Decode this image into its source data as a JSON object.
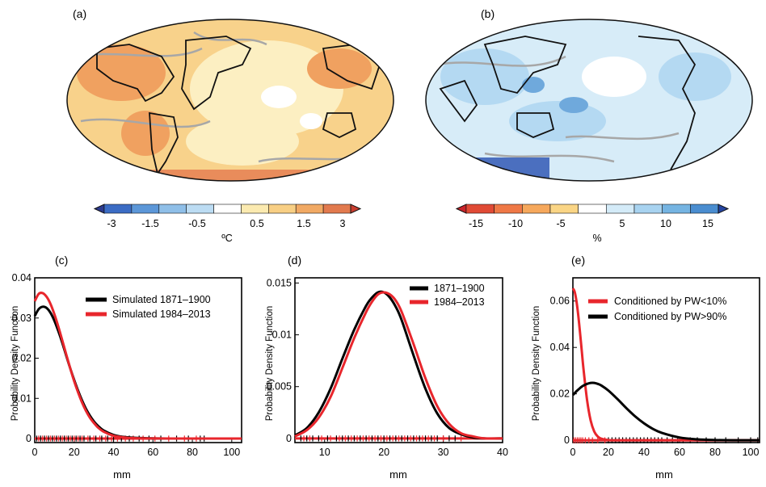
{
  "maps": [
    {
      "label": "(a)",
      "colorbar": {
        "tick_labels": [
          "-3",
          "-1.5",
          "-0.5",
          "0.5",
          "1.5",
          "3"
        ],
        "unit": "ºC",
        "colors": [
          "#2c3a8f",
          "#3b6cc4",
          "#5c97d8",
          "#8fbfe8",
          "#bcdcf3",
          "#ffffff",
          "#fbeab0",
          "#f8cf84",
          "#f1a964",
          "#e27a4e",
          "#c93d2f"
        ]
      },
      "colors": {
        "ocean": "#f8d28b",
        "warm": "#f0a160",
        "light": "#fcefc2",
        "white": "#ffffff"
      }
    },
    {
      "label": "(b)",
      "colorbar": {
        "tick_labels": [
          "-15",
          "-10",
          "-5",
          "5",
          "10",
          "15"
        ],
        "unit": "%",
        "colors": [
          "#c9232a",
          "#e04a35",
          "#ef7846",
          "#f6a85c",
          "#fad585",
          "#ffffff",
          "#d4ebf8",
          "#a8d3f0",
          "#75b4e2",
          "#4a8dd0",
          "#2545a0"
        ]
      },
      "colors": {
        "ocean": "#d7ecf8",
        "mid": "#b4d9f2",
        "dark": "#6fa9dc",
        "white": "#ffffff"
      }
    }
  ],
  "chart_data": [
    {
      "type": "line",
      "label": "(c)",
      "xlabel": "mm",
      "ylabel": "Probability Density Function",
      "xlim": [
        0,
        105
      ],
      "ylim": [
        -0.001,
        0.04
      ],
      "xticks": [
        "0",
        "20",
        "40",
        "60",
        "80",
        "100"
      ],
      "yticks": [
        "0",
        "0.01",
        "0.02",
        "0.03",
        "0.04"
      ],
      "x": [
        0,
        2,
        4,
        6,
        8,
        10,
        12,
        14,
        16,
        18,
        20,
        22,
        24,
        26,
        28,
        30,
        32,
        35,
        40,
        45,
        50,
        60,
        70,
        80,
        90,
        100,
        105
      ],
      "series": [
        {
          "name": "Simulated 1871–1900",
          "color": "#000000",
          "values": [
            0.0305,
            0.0322,
            0.0328,
            0.0325,
            0.0313,
            0.0293,
            0.0267,
            0.0238,
            0.0206,
            0.0175,
            0.0146,
            0.0119,
            0.0095,
            0.0074,
            0.0057,
            0.0043,
            0.0032,
            0.002,
            0.0009,
            0.0004,
            0.0002,
            5e-05,
            0.0,
            0.0,
            0.0,
            0.0,
            0.0
          ]
        },
        {
          "name": "Simulated 1984–2013",
          "color": "#e8262c",
          "values": [
            0.0342,
            0.036,
            0.0362,
            0.0353,
            0.0335,
            0.0309,
            0.0278,
            0.0244,
            0.0209,
            0.0175,
            0.0143,
            0.0115,
            0.009,
            0.0069,
            0.0052,
            0.0039,
            0.0028,
            0.0017,
            0.0007,
            0.0003,
            0.0001,
            3e-05,
            0.0,
            0.0,
            0.0,
            0.0,
            0.0
          ]
        }
      ],
      "rug": {
        "black": [
          1,
          3,
          5,
          7,
          9,
          11,
          13,
          15,
          17,
          19,
          21,
          23,
          25,
          28,
          31,
          34,
          37,
          40,
          44,
          48,
          53,
          58,
          64,
          72,
          78,
          84,
          86
        ],
        "red": [
          2,
          4,
          6,
          8,
          10,
          12,
          14,
          16,
          18,
          20,
          22,
          24,
          27,
          30,
          33,
          36,
          39,
          42,
          46,
          50,
          55,
          61,
          68,
          76,
          82
        ]
      },
      "legend": "top-right"
    },
    {
      "type": "line",
      "label": "(d)",
      "xlabel": "mm",
      "ylabel": "Probability Density Function",
      "xlim": [
        5,
        40
      ],
      "ylim": [
        -0.0004,
        0.0155
      ],
      "xticks": [
        "10",
        "20",
        "30",
        "40"
      ],
      "yticks": [
        "0",
        "0.005",
        "0.01",
        "0.015"
      ],
      "x": [
        5,
        7,
        9,
        11,
        13,
        15,
        17,
        18,
        19,
        20,
        21,
        22,
        23,
        25,
        27,
        29,
        31,
        33,
        35,
        37,
        40
      ],
      "series": [
        {
          "name": "1871–1900",
          "color": "#000000",
          "values": [
            0.0003,
            0.001,
            0.0025,
            0.0048,
            0.0077,
            0.0105,
            0.0128,
            0.0136,
            0.0141,
            0.0141,
            0.0136,
            0.0127,
            0.0114,
            0.008,
            0.0048,
            0.0024,
            0.001,
            0.0004,
            0.0001,
            0.0,
            0.0
          ]
        },
        {
          "name": "1984–2013",
          "color": "#e8262c",
          "values": [
            0.0002,
            0.0008,
            0.002,
            0.004,
            0.0068,
            0.0097,
            0.0122,
            0.0132,
            0.0139,
            0.0141,
            0.0139,
            0.0133,
            0.0122,
            0.0091,
            0.0058,
            0.0031,
            0.0014,
            0.0005,
            0.0002,
            0.0,
            0.0
          ]
        }
      ],
      "rug": {
        "black": [
          6,
          7,
          8,
          9,
          10.5,
          12,
          13,
          14,
          15,
          16,
          17,
          18,
          19,
          20,
          21,
          22,
          23,
          24,
          25,
          26,
          27,
          28,
          29,
          30,
          31,
          32
        ],
        "red": [
          6.5,
          7.5,
          9.5,
          11,
          12.5,
          13.5,
          14.5,
          15.5,
          16.5,
          17.5,
          18.5,
          19.5,
          20.5,
          21.5,
          22.5,
          23.5,
          24.5,
          25.5,
          26.5,
          27.5,
          28.5,
          30,
          33
        ]
      },
      "legend": "top-right"
    },
    {
      "type": "line",
      "label": "(e)",
      "xlabel": "mm",
      "ylabel": "Probability Density Function",
      "xlim": [
        0,
        105
      ],
      "ylim": [
        -0.001,
        0.07
      ],
      "xticks": [
        "0",
        "20",
        "40",
        "60",
        "80",
        "100"
      ],
      "yticks": [
        "0",
        "0.02",
        "0.04",
        "0.06"
      ],
      "x": [
        0,
        1,
        2,
        3,
        4,
        5,
        6,
        8,
        10,
        12,
        14,
        16,
        20,
        25,
        30,
        35,
        40,
        45,
        50,
        60,
        70,
        80,
        90,
        100,
        105
      ],
      "series": [
        {
          "name": "Conditioned by PW<10%",
          "color": "#e8262c",
          "values": [
            0.0655,
            0.064,
            0.06,
            0.054,
            0.0465,
            0.0385,
            0.0305,
            0.0172,
            0.0085,
            0.0038,
            0.0016,
            0.0007,
            0.0001,
            0.0,
            0.0,
            0.0,
            0.0,
            0.0,
            0.0,
            0.0,
            0.0,
            0.0,
            0.0,
            0.0,
            0.0
          ]
        },
        {
          "name": "Conditioned by PW>90%",
          "color": "#000000",
          "values": [
            0.0195,
            0.0203,
            0.0211,
            0.0218,
            0.0225,
            0.0231,
            0.0236,
            0.0243,
            0.0247,
            0.0247,
            0.0243,
            0.0236,
            0.0214,
            0.0178,
            0.0139,
            0.0103,
            0.0073,
            0.0049,
            0.0032,
            0.0012,
            0.0004,
            0.0001,
            0.0,
            0.0,
            0.0
          ]
        }
      ],
      "rug": {
        "black": [
          20,
          22,
          24,
          26,
          28,
          30,
          32,
          34,
          36,
          38,
          40,
          42,
          44,
          46,
          48,
          50,
          53,
          56,
          59,
          62,
          66,
          70,
          75,
          80,
          86,
          93,
          100,
          104
        ],
        "red": [
          0.5,
          1.5,
          2.5,
          3.5,
          4.5,
          5.5,
          7,
          9,
          11,
          14,
          18
        ]
      },
      "legend": "top-right"
    }
  ]
}
